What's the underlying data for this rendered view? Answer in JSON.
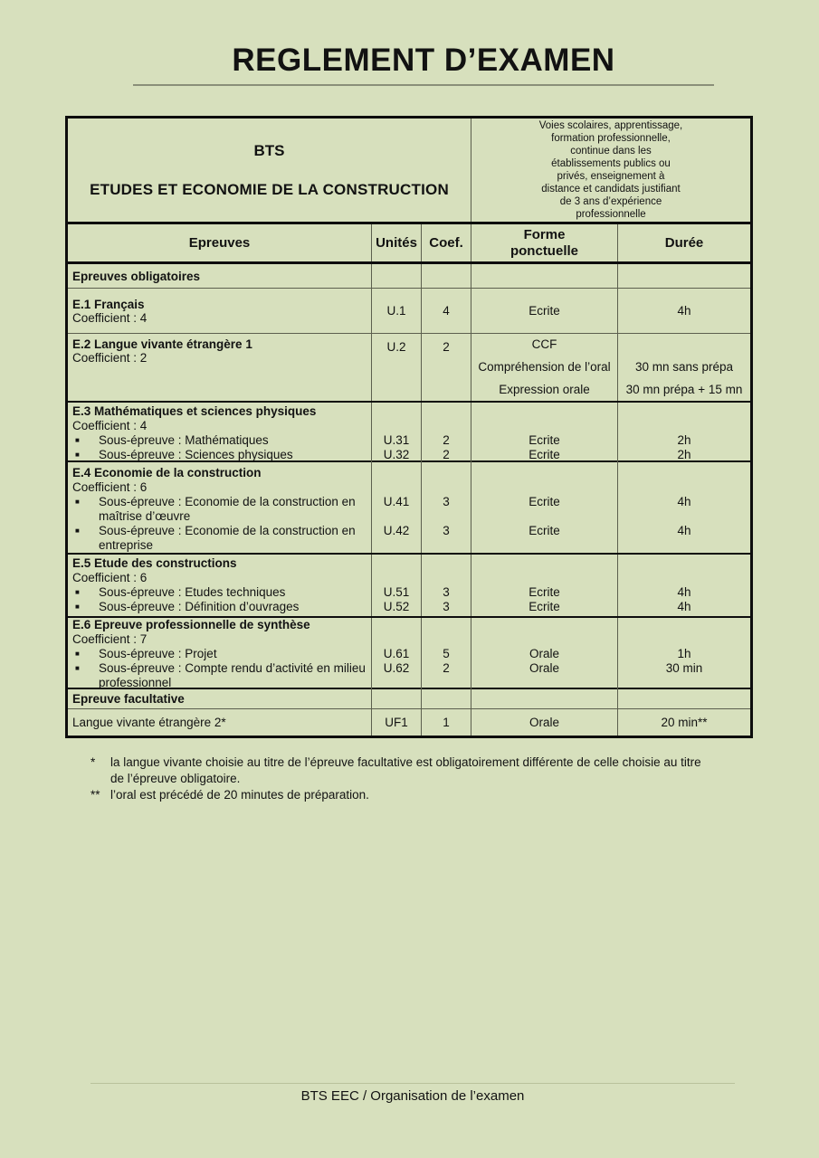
{
  "page": {
    "title": "REGLEMENT D’EXAMEN",
    "footer": "BTS EEC / Organisation de l’examen"
  },
  "colors": {
    "paper": "#d7e0bd",
    "border_heavy": "#0d0d0d",
    "border_light": "#5c5f4e",
    "text": "#121212"
  },
  "table": {
    "top": {
      "bts": "BTS",
      "program": "ETUDES ET ECONOMIE DE LA CONSTRUCTION",
      "voies": "Voies scolaires, apprentissage,\nformation professionnelle,\ncontinue dans les\nétablissements publics ou\nprivés, enseignement à\ndistance et candidats justifiant\nde 3 ans d’expérience\nprofessionnelle"
    },
    "headers": {
      "epreuves": "Epreuves",
      "unites": "Unités",
      "coef": "Coef.",
      "forme": "Forme\nponctuelle",
      "duree": "Durée"
    },
    "rows": {
      "obligatoires_label": "Epreuves obligatoires",
      "e1": {
        "title": "E.1 Français",
        "coeff": "Coefficient : 4",
        "unite": "U.1",
        "coef": "4",
        "forme": "Ecrite",
        "duree": "4h"
      },
      "e2": {
        "title": "E.2 Langue vivante étrangère 1",
        "coeff": "Coefficient : 2",
        "unite": "U.2",
        "coef": "2",
        "forme1": "CCF",
        "forme2": "Compréhension de l’oral",
        "forme3": "Expression orale",
        "duree2": "30 mn sans prépa",
        "duree3": "30 mn prépa + 15 mn"
      },
      "e3": {
        "title": "E.3 Mathématiques et sciences physiques",
        "coeff": "Coefficient : 4",
        "sub1": {
          "label": "Sous-épreuve : Mathématiques",
          "unite": "U.31",
          "coef": "2",
          "forme": "Ecrite",
          "duree": "2h"
        },
        "sub2": {
          "label": "Sous-épreuve : Sciences physiques",
          "unite": "U.32",
          "coef": "2",
          "forme": "Ecrite",
          "duree": "2h"
        }
      },
      "e4": {
        "title": "E.4 Economie de la construction",
        "coeff": "Coefficient : 6",
        "sub1": {
          "label": "Sous-épreuve : Economie de la construction en\nmaîtrise d’œuvre",
          "unite": "U.41",
          "coef": "3",
          "forme": "Ecrite",
          "duree": "4h"
        },
        "sub2": {
          "label": "Sous-épreuve : Economie de la construction en\nentreprise",
          "unite": "U.42",
          "coef": "3",
          "forme": "Ecrite",
          "duree": "4h"
        }
      },
      "e5": {
        "title": "E.5 Etude des constructions",
        "coeff": "Coefficient : 6",
        "sub1": {
          "label": "Sous-épreuve : Etudes techniques",
          "unite": "U.51",
          "coef": "3",
          "forme": "Ecrite",
          "duree": "4h"
        },
        "sub2": {
          "label": "Sous-épreuve : Définition d’ouvrages",
          "unite": "U.52",
          "coef": "3",
          "forme": "Ecrite",
          "duree": "4h"
        }
      },
      "e6": {
        "title": "E.6 Epreuve professionnelle de synthèse",
        "coeff": "Coefficient : 7",
        "sub1": {
          "label": "Sous-épreuve : Projet",
          "unite": "U.61",
          "coef": "5",
          "forme": "Orale",
          "duree": "1h"
        },
        "sub2": {
          "label": "Sous-épreuve : Compte rendu d’activité en milieu\nprofessionnel",
          "unite": "U.62",
          "coef": "2",
          "forme": "Orale",
          "duree": "30 min"
        }
      },
      "facultative_label": "Epreuve facultative",
      "lv2": {
        "label": "Langue vivante étrangère 2*",
        "unite": "UF1",
        "coef": "1",
        "forme": "Orale",
        "duree": "20 min**"
      }
    }
  },
  "footnotes": [
    {
      "marker": "*",
      "text": "la langue vivante choisie au titre de l’épreuve facultative est obligatoirement différente de celle choisie au titre de l’épreuve obligatoire."
    },
    {
      "marker": "**",
      "text": "l’oral est précédé de 20 minutes de préparation."
    }
  ]
}
